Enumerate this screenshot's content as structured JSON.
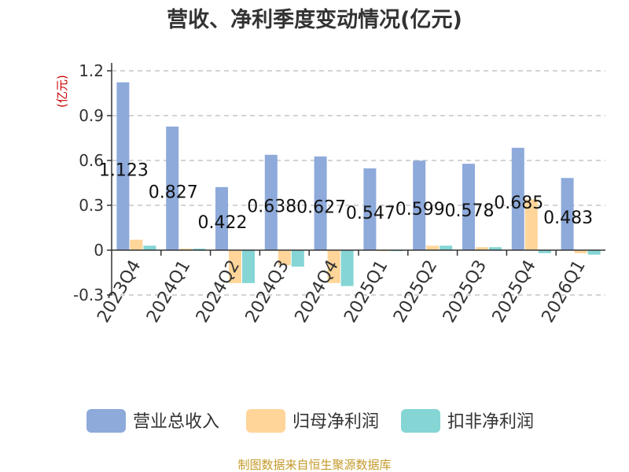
{
  "chart_data": {
    "type": "bar",
    "title": "营收、净利季度变动情况(亿元)",
    "ylabel": "(亿元)",
    "categories": [
      "2023Q4",
      "2024Q1",
      "2024Q2",
      "2024Q3",
      "2024Q4",
      "2025Q1",
      "2025Q2",
      "2025Q3",
      "2025Q4",
      "2026Q1"
    ],
    "series": [
      {
        "name": "营业总收入",
        "color": "#8eaadb",
        "values": [
          1.123,
          0.827,
          0.422,
          0.638,
          0.627,
          0.547,
          0.599,
          0.578,
          0.685,
          0.483
        ]
      },
      {
        "name": "归母净利润",
        "color": "#ffd599",
        "values": [
          0.07,
          0.01,
          -0.22,
          -0.1,
          -0.22,
          0.0,
          0.03,
          0.02,
          0.34,
          -0.02
        ]
      },
      {
        "name": "扣非净利润",
        "color": "#85d5d5",
        "values": [
          0.03,
          0.01,
          -0.22,
          -0.11,
          -0.24,
          0.0,
          0.03,
          0.02,
          -0.02,
          -0.03
        ]
      }
    ],
    "data_labels": [
      "1.123",
      "0.827",
      "0.422",
      "0.638",
      "0.627",
      "0.547",
      "0.599",
      "0.578",
      "0.685",
      "0.483"
    ],
    "yticks": [
      "1.2",
      "0.9",
      "0.6",
      "0.3",
      "0",
      "-0.3"
    ],
    "ylim": [
      -0.3,
      1.2
    ],
    "grid": true,
    "legend_position": "bottom"
  },
  "source_text": "制图数据来自恒生聚源数据库"
}
